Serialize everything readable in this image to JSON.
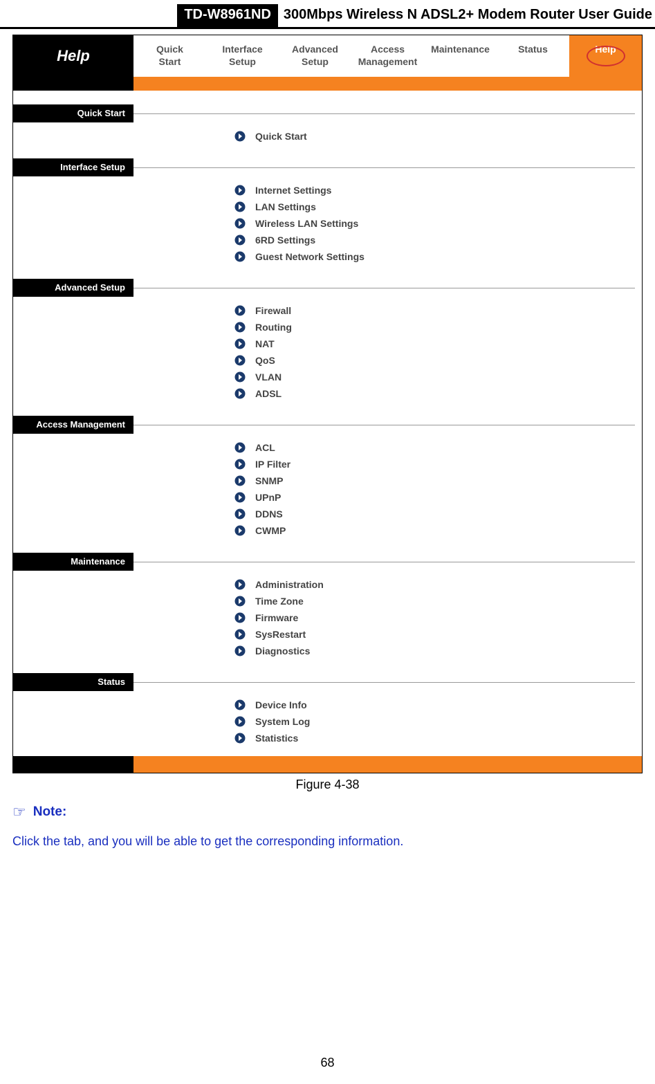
{
  "doc_header": {
    "model": "TD-W8961ND",
    "title": "300Mbps Wireless N ADSL2+ Modem Router User Guide"
  },
  "router": {
    "page_title": "Help",
    "active_tab_index": 7,
    "tabs": [
      "Quick\nStart",
      "Interface\nSetup",
      "Advanced\nSetup",
      "Access\nManagement",
      "Maintenance",
      "Status",
      "Help"
    ],
    "colors": {
      "accent": "#f58220",
      "sidebar_bg": "#000000",
      "sidebar_fg": "#ffffff",
      "tab_fg": "#555555",
      "link_fg": "#444444",
      "circle": "#d03030",
      "rule": "#999999"
    },
    "bullet": {
      "outer_fill": "#1b3a6b",
      "inner_fill": "#ffffff"
    },
    "sections": [
      {
        "title": "Quick Start",
        "items": [
          "Quick Start"
        ]
      },
      {
        "title": "Interface Setup",
        "items": [
          "Internet Settings",
          "LAN Settings",
          "Wireless LAN Settings",
          "6RD Settings",
          "Guest Network Settings"
        ]
      },
      {
        "title": "Advanced Setup",
        "items": [
          "Firewall",
          "Routing",
          "NAT",
          "QoS",
          "VLAN",
          "ADSL"
        ]
      },
      {
        "title": "Access Management",
        "items": [
          "ACL",
          "IP Filter",
          "SNMP",
          "UPnP",
          "DDNS",
          "CWMP"
        ]
      },
      {
        "title": "Maintenance",
        "items": [
          "Administration",
          "Time Zone",
          "Firmware",
          "SysRestart",
          "Diagnostics"
        ]
      },
      {
        "title": "Status",
        "items": [
          "Device Info",
          "System Log",
          "Statistics"
        ]
      }
    ]
  },
  "figure_caption": "Figure 4-38",
  "note": {
    "label": "Note:",
    "color": "#1a2fbf"
  },
  "body_text": "Click the tab, and you will be able to get the corresponding information.",
  "page_number": "68"
}
